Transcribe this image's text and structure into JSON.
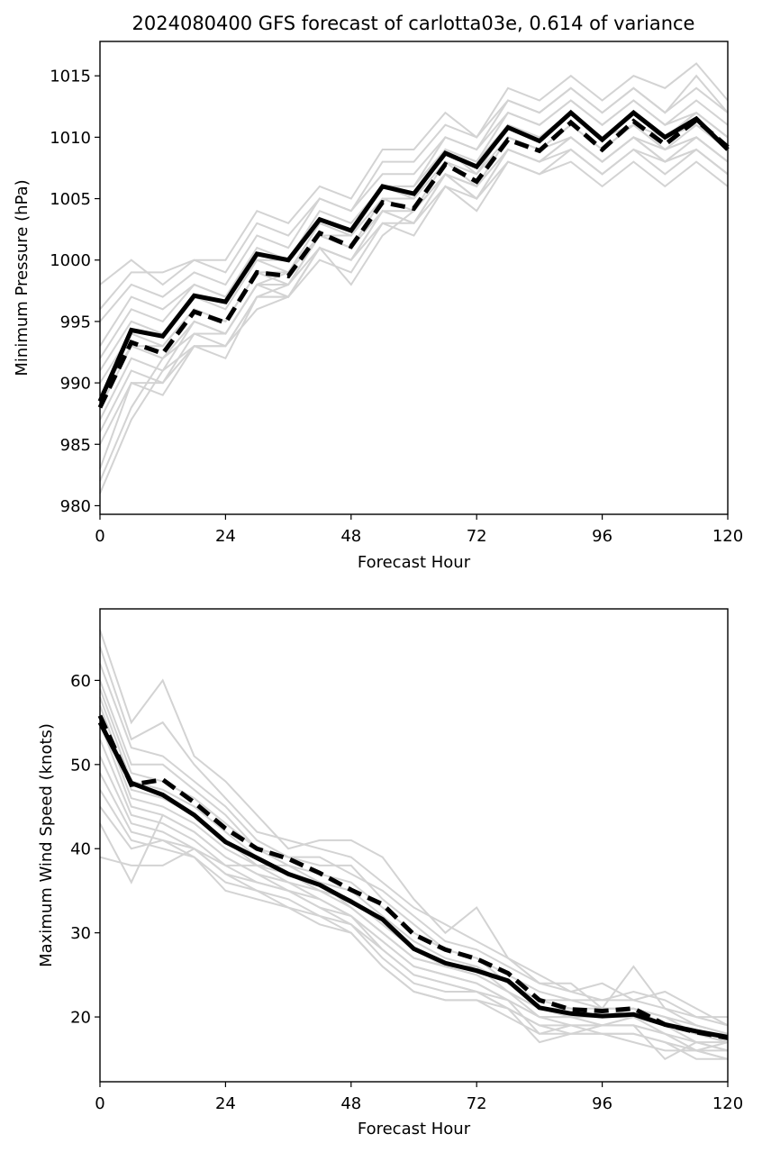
{
  "chart_data": [
    {
      "type": "line",
      "title": "2024080400 GFS forecast of carlotta03e, 0.614 of variance",
      "xlabel": "Forecast Hour",
      "ylabel": "Minimum Pressure (hPa)",
      "xlim": [
        0,
        120
      ],
      "ylim": [
        979.3,
        1017.8
      ],
      "xticks": [
        "0",
        "24",
        "48",
        "72",
        "96",
        "120"
      ],
      "yticks": [
        "980",
        "985",
        "990",
        "995",
        "1000",
        "1005",
        "1010",
        "1015"
      ],
      "grid": false,
      "x": [
        0,
        6,
        12,
        18,
        24,
        30,
        36,
        42,
        48,
        54,
        60,
        66,
        72,
        78,
        84,
        90,
        96,
        102,
        108,
        114,
        120
      ],
      "series": [
        {
          "style": "solid-thick",
          "color": "#000000",
          "values": [
            988.5,
            994.3,
            993.8,
            997.1,
            996.6,
            1000.5,
            1000.0,
            1003.3,
            1002.4,
            1006.0,
            1005.4,
            1008.7,
            1007.6,
            1010.8,
            1009.7,
            1012.0,
            1009.8,
            1012.0,
            1010.0,
            1011.5,
            1009.0
          ]
        },
        {
          "style": "dashed-thick",
          "color": "#000000",
          "values": [
            988.0,
            993.3,
            992.4,
            995.8,
            994.9,
            999.0,
            998.7,
            1002.2,
            1001.1,
            1004.7,
            1004.2,
            1007.8,
            1006.4,
            1009.8,
            1008.9,
            1011.2,
            1009.0,
            1011.3,
            1009.4,
            1011.4,
            1009.2
          ]
        },
        {
          "style": "ensemble",
          "color": "#d3d3d3",
          "values": [
            998.0,
            1000.0,
            998.0,
            1000.0,
            1000.0,
            1004.0,
            1003.0,
            1006.0,
            1005.0,
            1009.0,
            1009.0,
            1012.0,
            1010.0,
            1014.0,
            1013.0,
            1015.0,
            1013.0,
            1015.0,
            1014.0,
            1016.0,
            1013.0
          ]
        },
        {
          "style": "ensemble",
          "color": "#d3d3d3",
          "values": [
            996.0,
            999.0,
            999.0,
            1000.0,
            999.0,
            1003.0,
            1002.0,
            1005.0,
            1004.0,
            1008.0,
            1008.0,
            1011.0,
            1010.0,
            1013.0,
            1012.0,
            1014.0,
            1012.0,
            1014.0,
            1012.0,
            1015.0,
            1012.0
          ]
        },
        {
          "style": "ensemble",
          "color": "#d3d3d3",
          "values": [
            995.0,
            998.0,
            997.0,
            999.0,
            998.0,
            1002.0,
            1001.0,
            1005.0,
            1004.0,
            1007.0,
            1007.0,
            1010.0,
            1009.0,
            1012.0,
            1011.0,
            1013.0,
            1011.0,
            1013.0,
            1011.0,
            1013.0,
            1011.0
          ]
        },
        {
          "style": "ensemble",
          "color": "#d3d3d3",
          "values": [
            993.0,
            997.0,
            996.0,
            998.0,
            997.0,
            1001.0,
            1000.0,
            1004.0,
            1003.0,
            1006.0,
            1006.0,
            1009.0,
            1008.0,
            1011.0,
            1010.0,
            1012.0,
            1010.0,
            1012.0,
            1010.0,
            1012.0,
            1010.0
          ]
        },
        {
          "style": "ensemble",
          "color": "#d3d3d3",
          "values": [
            992.0,
            996.0,
            995.0,
            998.0,
            997.0,
            1000.0,
            1000.0,
            1003.0,
            1002.0,
            1006.0,
            1005.0,
            1009.0,
            1007.0,
            1011.0,
            1010.0,
            1012.0,
            1010.0,
            1011.0,
            1010.0,
            1011.0,
            1009.0
          ]
        },
        {
          "style": "ensemble",
          "color": "#d3d3d3",
          "values": [
            991.0,
            995.0,
            994.0,
            997.0,
            996.0,
            1000.0,
            999.0,
            1003.0,
            1002.0,
            1005.0,
            1005.0,
            1008.0,
            1007.0,
            1010.0,
            1009.0,
            1011.0,
            1009.0,
            1011.0,
            1009.0,
            1011.0,
            1009.0
          ]
        },
        {
          "style": "ensemble",
          "color": "#d3d3d3",
          "values": [
            990.0,
            994.0,
            993.0,
            996.0,
            995.0,
            999.0,
            999.0,
            1002.0,
            1001.0,
            1005.0,
            1004.0,
            1008.0,
            1006.0,
            1010.0,
            1009.0,
            1010.0,
            1008.0,
            1010.0,
            1009.0,
            1010.0,
            1008.0
          ]
        },
        {
          "style": "ensemble",
          "color": "#d3d3d3",
          "values": [
            989.0,
            993.0,
            993.0,
            996.0,
            995.0,
            999.0,
            998.0,
            1002.0,
            1001.0,
            1004.0,
            1004.0,
            1007.0,
            1006.0,
            1009.0,
            1008.0,
            1010.0,
            1008.0,
            1010.0,
            1008.0,
            1010.0,
            1008.0
          ]
        },
        {
          "style": "ensemble",
          "color": "#d3d3d3",
          "values": [
            988.0,
            993.0,
            992.0,
            995.0,
            994.0,
            998.0,
            998.0,
            1001.0,
            1000.0,
            1004.0,
            1003.0,
            1007.0,
            1005.0,
            1009.0,
            1008.0,
            1009.0,
            1007.0,
            1009.0,
            1008.0,
            1009.0,
            1007.0
          ]
        },
        {
          "style": "ensemble",
          "color": "#d3d3d3",
          "values": [
            987.0,
            992.0,
            991.0,
            995.0,
            994.0,
            998.0,
            997.0,
            1001.0,
            1000.0,
            1003.0,
            1003.0,
            1006.0,
            1005.0,
            1008.0,
            1007.0,
            1009.0,
            1007.0,
            1009.0,
            1007.0,
            1009.0,
            1007.0
          ]
        },
        {
          "style": "ensemble",
          "color": "#d3d3d3",
          "values": [
            986.0,
            991.0,
            990.0,
            994.0,
            993.0,
            997.0,
            997.0,
            1000.0,
            999.0,
            1003.0,
            1002.0,
            1006.0,
            1004.0,
            1008.0,
            1007.0,
            1008.0,
            1006.0,
            1008.0,
            1006.0,
            1008.0,
            1006.0
          ]
        },
        {
          "style": "ensemble",
          "color": "#d3d3d3",
          "values": [
            985.0,
            990.0,
            990.0,
            993.0,
            992.0,
            997.0,
            997.0,
            1001.0,
            998.0,
            1002.0,
            1004.0,
            1007.0,
            1005.0,
            1009.0,
            1008.0,
            1010.0,
            1008.0,
            1010.0,
            1008.0,
            1009.0,
            1007.0
          ]
        },
        {
          "style": "ensemble",
          "color": "#d3d3d3",
          "values": [
            983.0,
            990.0,
            989.0,
            993.0,
            993.0,
            996.0,
            997.0,
            1001.0,
            1000.0,
            1004.0,
            1003.0,
            1007.0,
            1006.0,
            1010.0,
            1009.0,
            1011.0,
            1009.0,
            1011.0,
            1009.0,
            1010.0,
            1008.0
          ]
        },
        {
          "style": "ensemble",
          "color": "#d3d3d3",
          "values": [
            982.0,
            988.0,
            992.0,
            994.0,
            994.0,
            998.0,
            999.0,
            1002.0,
            1001.0,
            1005.0,
            1005.0,
            1009.0,
            1008.0,
            1012.0,
            1011.0,
            1013.0,
            1011.0,
            1013.0,
            1011.0,
            1012.0,
            1010.0
          ]
        },
        {
          "style": "ensemble",
          "color": "#d3d3d3",
          "values": [
            981.0,
            987.0,
            991.0,
            993.0,
            993.0,
            997.0,
            998.0,
            1002.0,
            1002.0,
            1006.0,
            1006.0,
            1010.0,
            1009.0,
            1013.0,
            1012.0,
            1014.0,
            1012.0,
            1014.0,
            1012.0,
            1014.0,
            1012.0
          ]
        }
      ]
    },
    {
      "type": "line",
      "title": "",
      "xlabel": "Forecast Hour",
      "ylabel": "Maximum Wind Speed (knots)",
      "xlim": [
        0,
        120
      ],
      "ylim": [
        12.3,
        68.5
      ],
      "xticks": [
        "0",
        "24",
        "48",
        "72",
        "96",
        "120"
      ],
      "yticks": [
        "20",
        "30",
        "40",
        "50",
        "60"
      ],
      "grid": false,
      "x": [
        0,
        6,
        12,
        18,
        24,
        30,
        36,
        42,
        48,
        54,
        60,
        66,
        72,
        78,
        84,
        90,
        96,
        102,
        108,
        114,
        120
      ],
      "series": [
        {
          "style": "solid-thick",
          "color": "#000000",
          "values": [
            55.0,
            47.8,
            46.4,
            44.0,
            40.8,
            38.9,
            37.0,
            35.7,
            33.7,
            31.6,
            28.1,
            26.4,
            25.5,
            24.3,
            21.1,
            20.4,
            20.1,
            20.3,
            19.1,
            18.3,
            17.6
          ]
        },
        {
          "style": "dashed-thick",
          "color": "#000000",
          "values": [
            55.8,
            47.6,
            48.2,
            45.5,
            42.4,
            40.0,
            38.8,
            37.1,
            35.1,
            33.4,
            29.8,
            28.0,
            26.9,
            25.2,
            22.0,
            20.9,
            20.7,
            21.0,
            19.1,
            18.2,
            17.5
          ]
        },
        {
          "style": "ensemble",
          "color": "#d3d3d3",
          "values": [
            66.0,
            55.0,
            60.0,
            51.0,
            48.0,
            44.0,
            40.0,
            41.0,
            41.0,
            39.0,
            34.0,
            30.0,
            33.0,
            27.0,
            24.0,
            24.0,
            21.0,
            26.0,
            21.0,
            19.0,
            18.0
          ]
        },
        {
          "style": "ensemble",
          "color": "#d3d3d3",
          "values": [
            64.0,
            53.0,
            55.0,
            50.0,
            46.0,
            42.0,
            41.0,
            40.0,
            39.0,
            36.0,
            33.0,
            31.0,
            29.0,
            27.0,
            25.0,
            23.0,
            22.0,
            23.0,
            22.0,
            20.0,
            20.0
          ]
        },
        {
          "style": "ensemble",
          "color": "#d3d3d3",
          "values": [
            62.0,
            52.0,
            51.0,
            48.0,
            45.0,
            41.0,
            39.0,
            39.0,
            37.0,
            35.0,
            32.0,
            29.0,
            28.0,
            26.0,
            24.0,
            23.0,
            24.0,
            22.0,
            23.0,
            21.0,
            19.0
          ]
        },
        {
          "style": "ensemble",
          "color": "#d3d3d3",
          "values": [
            60.0,
            50.0,
            50.0,
            47.0,
            44.0,
            40.0,
            39.0,
            38.0,
            38.0,
            34.0,
            31.0,
            28.0,
            27.0,
            25.0,
            23.0,
            22.0,
            22.0,
            22.0,
            21.0,
            20.0,
            19.0
          ]
        },
        {
          "style": "ensemble",
          "color": "#d3d3d3",
          "values": [
            59.0,
            49.0,
            48.0,
            46.0,
            43.0,
            40.0,
            38.0,
            37.0,
            36.0,
            33.0,
            30.0,
            28.0,
            27.0,
            24.0,
            22.0,
            22.0,
            21.0,
            21.0,
            20.0,
            19.0,
            18.0
          ]
        },
        {
          "style": "ensemble",
          "color": "#d3d3d3",
          "values": [
            58.0,
            48.0,
            47.0,
            45.0,
            42.0,
            39.0,
            37.0,
            36.0,
            35.0,
            32.0,
            29.0,
            27.0,
            26.0,
            24.0,
            22.0,
            21.0,
            21.0,
            21.0,
            20.0,
            18.0,
            18.0
          ]
        },
        {
          "style": "ensemble",
          "color": "#d3d3d3",
          "values": [
            57.0,
            47.0,
            46.0,
            44.0,
            41.0,
            38.0,
            37.0,
            35.0,
            34.0,
            31.0,
            28.0,
            26.0,
            26.0,
            23.0,
            21.0,
            21.0,
            20.0,
            20.0,
            19.0,
            18.0,
            17.0
          ]
        },
        {
          "style": "ensemble",
          "color": "#d3d3d3",
          "values": [
            56.0,
            46.0,
            45.0,
            43.0,
            40.0,
            38.0,
            36.0,
            35.0,
            33.0,
            30.0,
            27.0,
            26.0,
            25.0,
            23.0,
            21.0,
            20.0,
            20.0,
            20.0,
            19.0,
            17.0,
            17.0
          ]
        },
        {
          "style": "ensemble",
          "color": "#d3d3d3",
          "values": [
            55.0,
            45.0,
            44.0,
            42.0,
            39.0,
            37.0,
            35.0,
            34.0,
            32.0,
            29.0,
            26.0,
            25.0,
            24.0,
            22.0,
            20.0,
            20.0,
            19.0,
            19.0,
            18.0,
            17.0,
            16.0
          ]
        },
        {
          "style": "ensemble",
          "color": "#d3d3d3",
          "values": [
            53.0,
            44.0,
            43.0,
            41.0,
            38.0,
            36.0,
            35.0,
            33.0,
            32.0,
            28.0,
            25.0,
            24.0,
            23.0,
            22.0,
            20.0,
            19.0,
            19.0,
            19.0,
            18.0,
            16.0,
            16.0
          ]
        },
        {
          "style": "ensemble",
          "color": "#d3d3d3",
          "values": [
            51.0,
            43.0,
            42.0,
            40.0,
            37.0,
            35.0,
            34.0,
            32.0,
            31.0,
            27.0,
            24.0,
            23.0,
            23.0,
            21.0,
            19.0,
            19.0,
            18.0,
            18.0,
            17.0,
            16.0,
            15.0
          ]
        },
        {
          "style": "ensemble",
          "color": "#d3d3d3",
          "values": [
            49.0,
            42.0,
            41.0,
            39.0,
            36.0,
            35.0,
            33.0,
            32.0,
            30.0,
            26.0,
            23.0,
            22.0,
            22.0,
            21.0,
            19.0,
            18.0,
            18.0,
            18.0,
            17.0,
            15.0,
            15.0
          ]
        },
        {
          "style": "ensemble",
          "color": "#d3d3d3",
          "values": [
            47.0,
            41.0,
            40.0,
            39.0,
            35.0,
            34.0,
            33.0,
            31.0,
            30.0,
            26.0,
            23.0,
            22.0,
            22.0,
            20.0,
            18.0,
            18.0,
            18.0,
            17.0,
            16.0,
            16.0,
            15.0
          ]
        },
        {
          "style": "ensemble",
          "color": "#d3d3d3",
          "values": [
            45.0,
            40.0,
            41.0,
            40.0,
            37.0,
            36.0,
            35.0,
            33.0,
            31.0,
            28.0,
            25.0,
            24.0,
            23.0,
            21.0,
            17.0,
            18.0,
            19.0,
            19.0,
            15.0,
            17.0,
            16.0
          ]
        },
        {
          "style": "ensemble",
          "color": "#d3d3d3",
          "values": [
            43.0,
            36.0,
            44.0,
            42.0,
            39.0,
            37.0,
            36.0,
            34.0,
            32.0,
            29.0,
            26.0,
            25.0,
            24.0,
            22.0,
            18.0,
            19.0,
            19.0,
            20.0,
            18.0,
            16.0,
            17.0
          ]
        },
        {
          "style": "ensemble",
          "color": "#d3d3d3",
          "values": [
            39.0,
            38.0,
            38.0,
            40.0,
            38.0,
            38.0,
            38.0,
            36.0,
            33.0,
            30.0,
            27.0,
            26.0,
            25.0,
            23.0,
            20.0,
            20.0,
            20.0,
            21.0,
            19.0,
            18.0,
            17.0
          ]
        }
      ]
    }
  ]
}
